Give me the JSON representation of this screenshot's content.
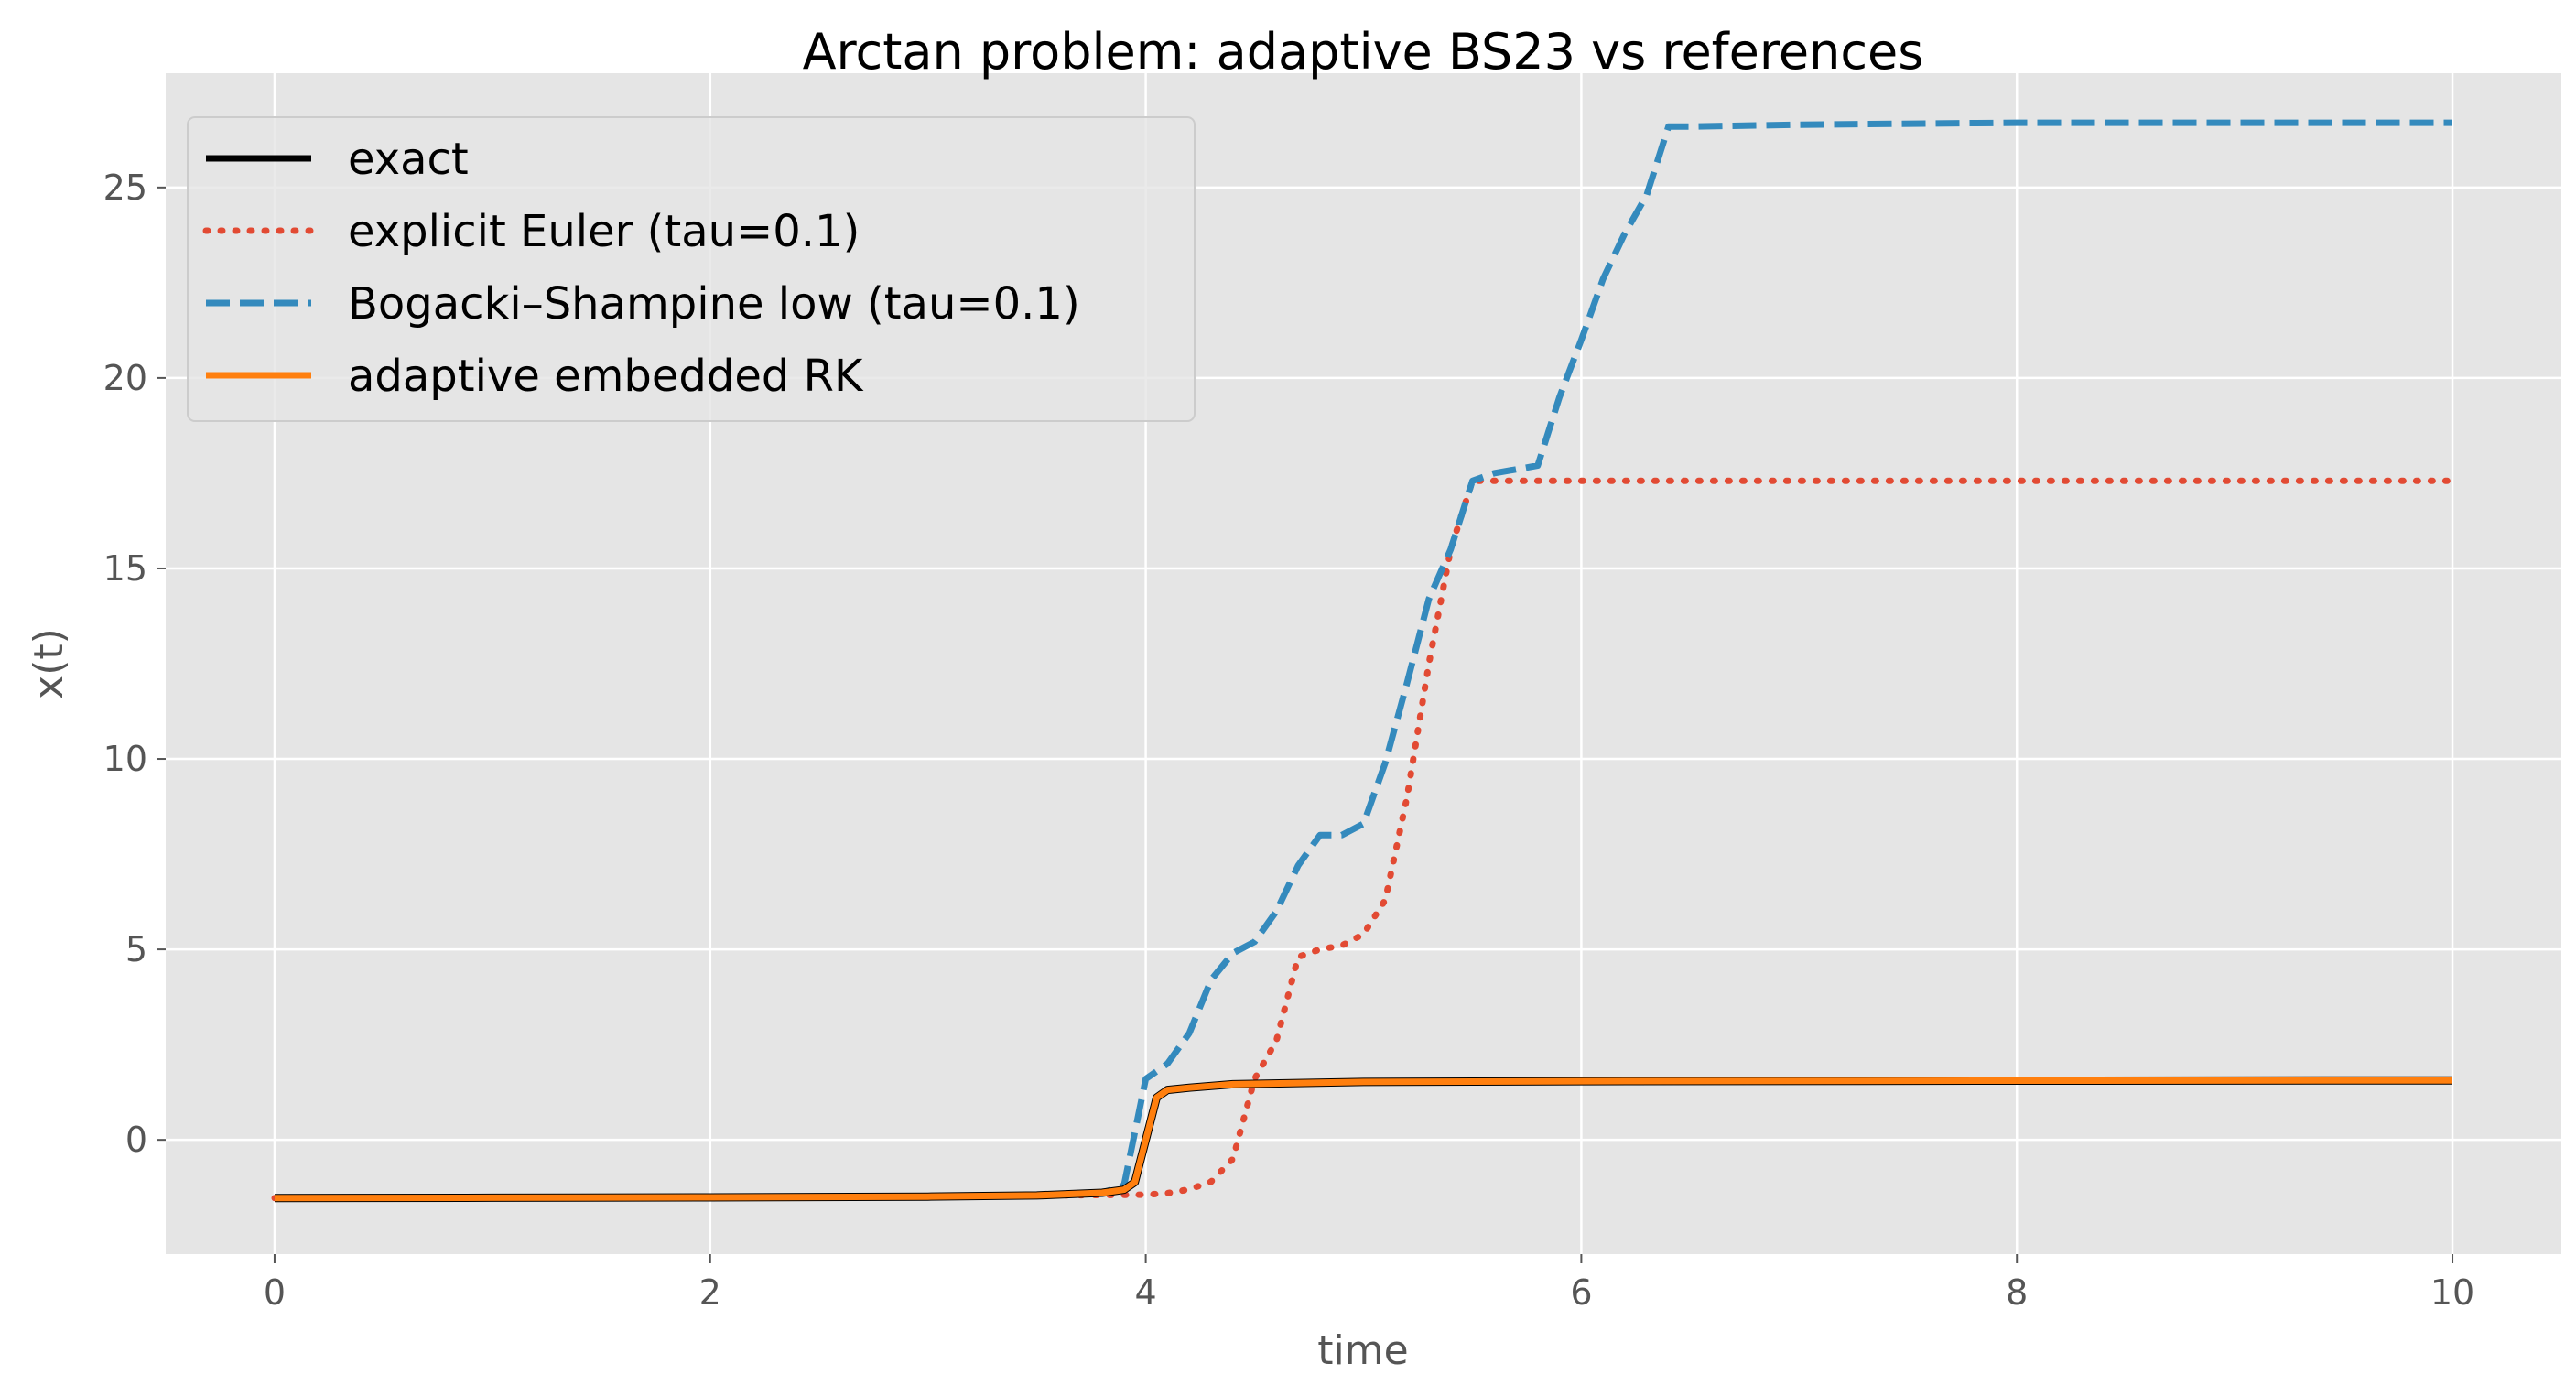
{
  "chart_data": {
    "type": "line",
    "title": "Arctan problem: adaptive BS23 vs references",
    "xlabel": "time",
    "ylabel": "x(t)",
    "xlim": [
      -0.5,
      10.5
    ],
    "ylim": [
      -3,
      28
    ],
    "xticks": [
      0,
      2,
      4,
      6,
      8,
      10
    ],
    "yticks": [
      0,
      5,
      10,
      15,
      20,
      25
    ],
    "grid": true,
    "legend_position": "top-left",
    "series": [
      {
        "name": "exact",
        "color": "#000000",
        "style": "solid",
        "x": [
          0,
          1,
          2,
          3,
          3.5,
          3.8,
          3.9,
          3.95,
          4.0,
          4.05,
          4.1,
          4.2,
          4.4,
          5,
          6,
          8,
          10
        ],
        "y": [
          -1.53,
          -1.52,
          -1.51,
          -1.49,
          -1.46,
          -1.39,
          -1.31,
          -1.11,
          0.0,
          1.11,
          1.31,
          1.37,
          1.46,
          1.52,
          1.54,
          1.555,
          1.56
        ]
      },
      {
        "name": "explicit Euler (tau=0.1)",
        "color": "#E24A33",
        "style": "dotted",
        "x": [
          0,
          1,
          2,
          3,
          3.5,
          3.8,
          4.0,
          4.1,
          4.2,
          4.3,
          4.4,
          4.5,
          4.6,
          4.7,
          4.8,
          4.9,
          5.0,
          5.1,
          5.2,
          5.3,
          5.4,
          5.5,
          5.6,
          6,
          7,
          8,
          9,
          10
        ],
        "y": [
          -1.53,
          -1.52,
          -1.51,
          -1.49,
          -1.46,
          -1.45,
          -1.44,
          -1.4,
          -1.3,
          -1.1,
          -0.5,
          1.6,
          2.6,
          4.8,
          5.0,
          5.1,
          5.4,
          6.3,
          9.0,
          12.5,
          15.5,
          17.3,
          17.3,
          17.3,
          17.3,
          17.3,
          17.3,
          17.3
        ]
      },
      {
        "name": "Bogacki–Shampine low (tau=0.1)",
        "color": "#348ABD",
        "style": "dashed",
        "x": [
          0,
          1,
          2,
          3,
          3.5,
          3.8,
          3.9,
          4.0,
          4.1,
          4.2,
          4.3,
          4.4,
          4.5,
          4.6,
          4.7,
          4.8,
          4.9,
          5.0,
          5.1,
          5.2,
          5.3,
          5.4,
          5.5,
          5.6,
          5.7,
          5.8,
          5.9,
          6.0,
          6.1,
          6.2,
          6.3,
          6.4,
          6.5,
          7,
          8,
          9,
          10
        ],
        "y": [
          -1.53,
          -1.52,
          -1.51,
          -1.49,
          -1.46,
          -1.39,
          -1.2,
          1.6,
          2.0,
          2.8,
          4.2,
          4.9,
          5.2,
          6.0,
          7.2,
          8.0,
          8.0,
          8.3,
          9.9,
          12.0,
          14.2,
          15.5,
          17.3,
          17.5,
          17.6,
          17.7,
          19.5,
          21.0,
          22.6,
          23.8,
          24.8,
          26.6,
          26.6,
          26.65,
          26.7,
          26.7,
          26.7
        ]
      },
      {
        "name": "adaptive embedded RK",
        "color": "#FF7F0E",
        "style": "solid",
        "x": [
          0,
          1,
          2,
          3,
          3.5,
          3.8,
          3.9,
          3.95,
          4.0,
          4.05,
          4.1,
          4.2,
          4.4,
          5,
          6,
          8,
          10
        ],
        "y": [
          -1.53,
          -1.52,
          -1.51,
          -1.49,
          -1.46,
          -1.39,
          -1.31,
          -1.11,
          0.0,
          1.11,
          1.31,
          1.37,
          1.46,
          1.52,
          1.54,
          1.555,
          1.56
        ]
      }
    ]
  }
}
